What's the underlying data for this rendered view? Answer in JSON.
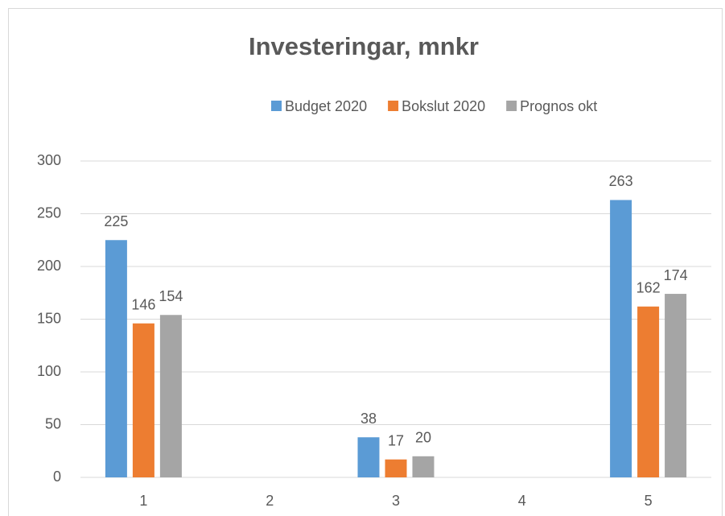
{
  "chart_data": {
    "type": "bar",
    "title": "Investeringar, mnkr",
    "categories": [
      "1",
      "2",
      "3",
      "4",
      "5"
    ],
    "series": [
      {
        "name": "Budget 2020",
        "color": "#5b9bd5",
        "values": [
          225,
          null,
          38,
          null,
          263
        ]
      },
      {
        "name": "Bokslut 2020",
        "color": "#ed7d31",
        "values": [
          146,
          null,
          17,
          null,
          162
        ]
      },
      {
        "name": "Prognos okt",
        "color": "#a5a5a5",
        "values": [
          154,
          null,
          20,
          null,
          174
        ]
      }
    ],
    "ylim": [
      0,
      300
    ],
    "yticks": [
      0,
      50,
      100,
      150,
      200,
      250,
      300
    ],
    "grid": true,
    "legend": "top"
  }
}
